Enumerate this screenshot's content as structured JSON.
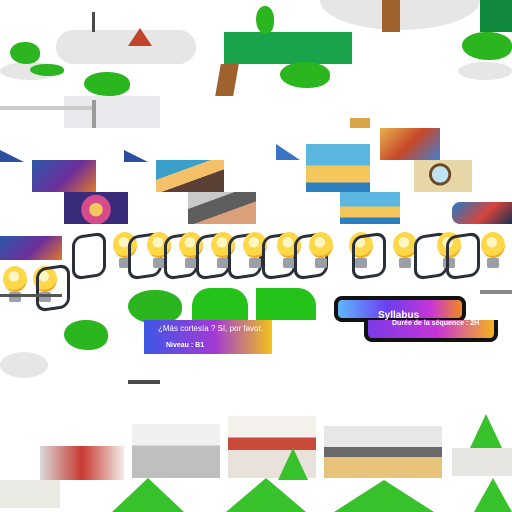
{
  "banner": {
    "title": "¿Más cortesía ? Sí, por favor.",
    "level": "Niveau : B1"
  },
  "syllabus": {
    "title": "Syllabus",
    "duration": "Durée de la séquence : 2H"
  },
  "colors": {
    "banner_start": "#3d56e6",
    "banner_mid": "#a33ad6",
    "banner_end": "#f2c21a",
    "tree_green": "#1aa34a",
    "leaf_green": "#2bb51f",
    "trunk_brown": "#a0622d",
    "bulb_yellow": "#ffd84a"
  },
  "icons": [
    "lightbulb-icon",
    "tree-icon",
    "cloud-icon",
    "map-icon",
    "book-icon",
    "magnifier-icon",
    "laptop-icon"
  ]
}
